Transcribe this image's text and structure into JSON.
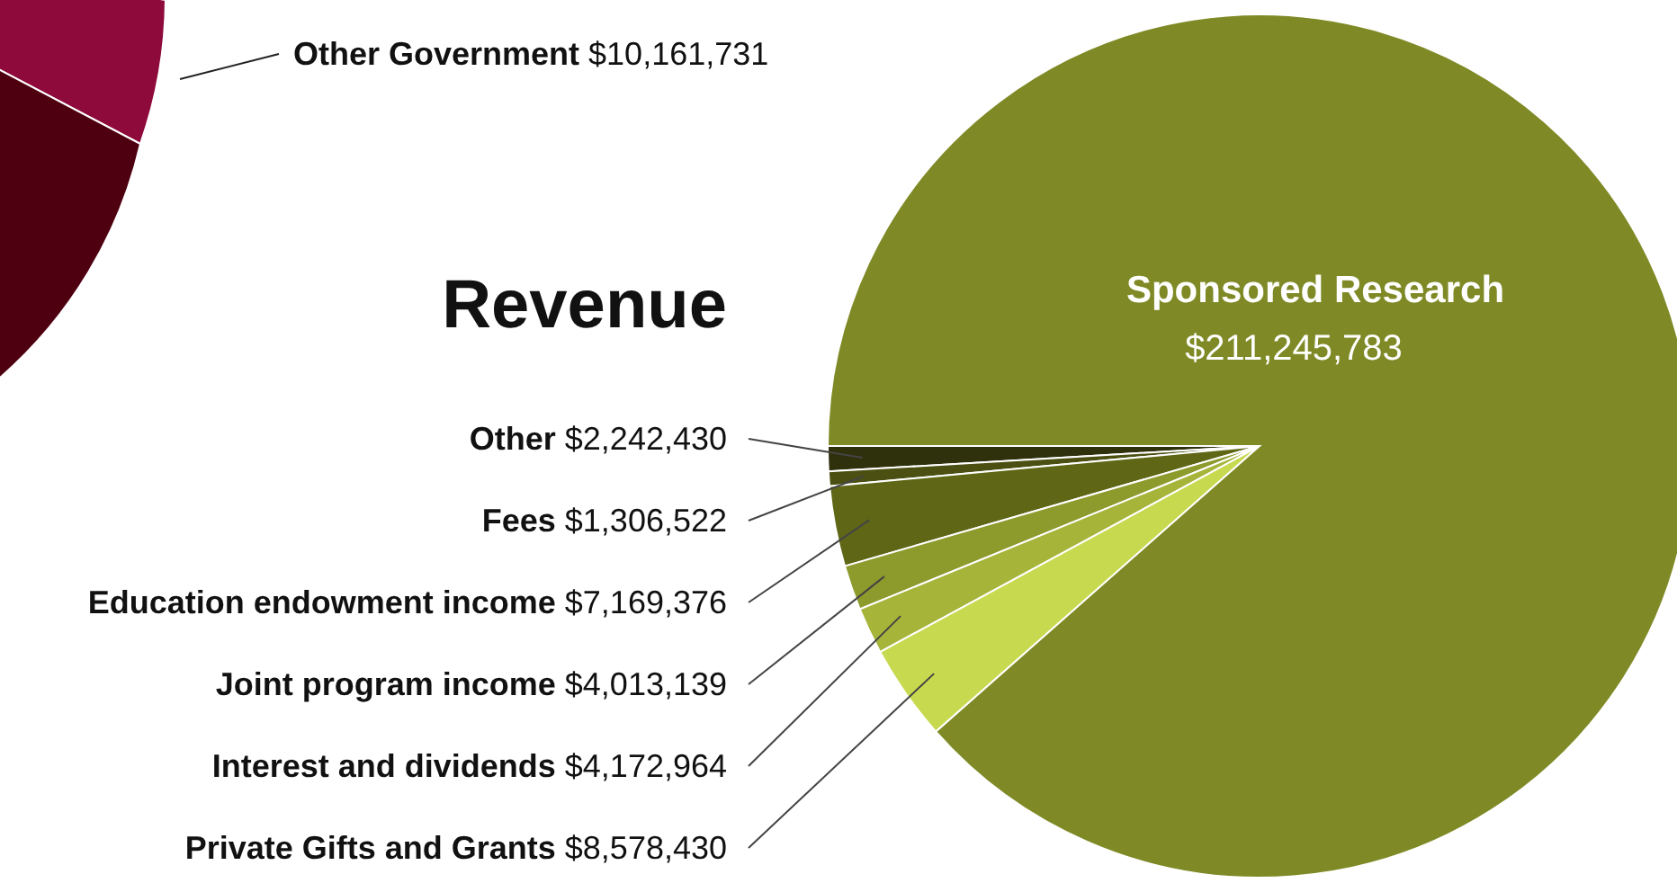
{
  "chart_data": [
    {
      "type": "other",
      "annotations": [
        "Other Government $10,161,731"
      ]
    },
    {
      "type": "pie",
      "title": "Revenue",
      "categories": [
        "Other",
        "Fees",
        "Education endowment income",
        "Joint program income",
        "Interest and dividends",
        "Private Gifts and Grants",
        "Sponsored Research"
      ],
      "values": [
        2242430,
        1306522,
        7169376,
        4013139,
        4172964,
        8578430,
        211245783
      ],
      "value_labels": [
        "$2,242,430",
        "$1,306,522",
        "$7,169,376",
        "$4,013,139",
        "$4,172,964",
        "$8,578,430",
        "$211,245,783"
      ],
      "colors": [
        "#2f300c",
        "#4b5012",
        "#5f6716",
        "#8d9a2c",
        "#a6b43a",
        "#c7da4f",
        "#7f8a26"
      ]
    }
  ]
}
